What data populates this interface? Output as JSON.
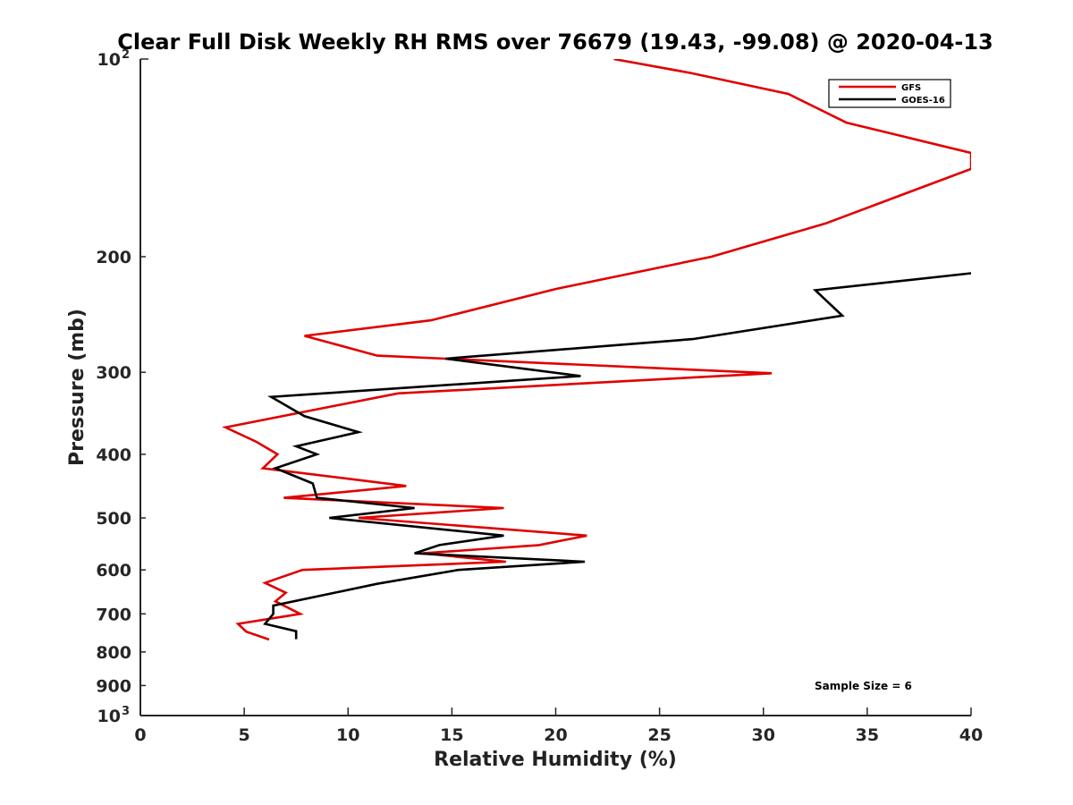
{
  "chart_data": {
    "type": "line",
    "title": "Clear Full Disk Weekly RH RMS over 76679 (19.43, -99.08) @ 2020-04-13",
    "xlabel": "Relative Humidity (%)",
    "ylabel": "Pressure (mb)",
    "xlim": [
      0,
      40
    ],
    "ylim": [
      100,
      1000
    ],
    "y_scale": "log",
    "y_reversed": true,
    "grid": false,
    "legend_position": "top-right",
    "annotation": "Sample Size = 6",
    "x_ticks": [
      0,
      5,
      10,
      15,
      20,
      25,
      30,
      35,
      40
    ],
    "y_ticks": [
      {
        "value": 100,
        "base": "10",
        "exp": "2"
      },
      {
        "value": 200,
        "label": "200"
      },
      {
        "value": 300,
        "label": "300"
      },
      {
        "value": 400,
        "label": "400"
      },
      {
        "value": 500,
        "label": "500"
      },
      {
        "value": 600,
        "label": "600"
      },
      {
        "value": 700,
        "label": "700"
      },
      {
        "value": 800,
        "label": "800"
      },
      {
        "value": 900,
        "label": "900"
      },
      {
        "value": 1000,
        "base": "10",
        "exp": "3"
      }
    ],
    "series": [
      {
        "name": "GFS",
        "color": "#e00000",
        "points": [
          [
            22.8,
            100
          ],
          [
            26.5,
            105
          ],
          [
            31.2,
            113
          ],
          [
            34.0,
            125
          ],
          [
            40.0,
            139
          ],
          [
            40.0,
            147
          ],
          [
            33.0,
            178
          ],
          [
            27.5,
            200
          ],
          [
            20.0,
            224
          ],
          [
            14.0,
            250
          ],
          [
            7.9,
            264
          ],
          [
            11.4,
            283
          ],
          [
            30.4,
            301
          ],
          [
            12.4,
            323
          ],
          [
            4.1,
            364
          ],
          [
            5.6,
            383
          ],
          [
            6.6,
            400
          ],
          [
            5.9,
            420
          ],
          [
            12.8,
            447
          ],
          [
            6.9,
            466
          ],
          [
            17.5,
            483
          ],
          [
            10.5,
            500
          ],
          [
            21.5,
            532
          ],
          [
            19.2,
            550
          ],
          [
            13.6,
            566
          ],
          [
            17.6,
            583
          ],
          [
            7.8,
            600
          ],
          [
            6.0,
            628
          ],
          [
            7.0,
            650
          ],
          [
            6.5,
            670
          ],
          [
            7.7,
            700
          ],
          [
            4.7,
            725
          ],
          [
            5.1,
            745
          ],
          [
            6.2,
            766
          ]
        ]
      },
      {
        "name": "GOES-16",
        "color": "#000000",
        "points": [
          [
            40.0,
            212
          ],
          [
            32.5,
            225
          ],
          [
            33.8,
            246
          ],
          [
            26.6,
            267
          ],
          [
            14.7,
            286
          ],
          [
            21.2,
            304
          ],
          [
            6.3,
            327
          ],
          [
            7.9,
            350
          ],
          [
            10.5,
            370
          ],
          [
            7.5,
            389
          ],
          [
            8.5,
            400
          ],
          [
            6.5,
            420
          ],
          [
            8.3,
            443
          ],
          [
            8.5,
            466
          ],
          [
            13.2,
            483
          ],
          [
            9.1,
            500
          ],
          [
            17.5,
            532
          ],
          [
            14.4,
            550
          ],
          [
            13.2,
            566
          ],
          [
            21.4,
            583
          ],
          [
            15.3,
            600
          ],
          [
            11.4,
            630
          ],
          [
            6.4,
            680
          ],
          [
            6.4,
            700
          ],
          [
            6.0,
            725
          ],
          [
            7.5,
            744
          ],
          [
            7.5,
            765
          ]
        ]
      }
    ]
  }
}
